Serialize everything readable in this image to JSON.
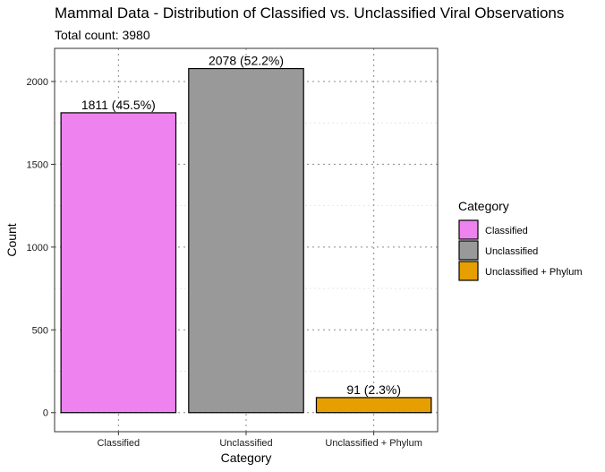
{
  "chart_data": {
    "type": "bar",
    "title": "Mammal Data - Distribution of Classified vs. Unclassified Viral Observations",
    "subtitle": "Total count: 3980",
    "xlabel": "Category",
    "ylabel": "Count",
    "categories": [
      "Classified",
      "Unclassified",
      "Unclassified + Phylum"
    ],
    "values": [
      1811,
      2078,
      91
    ],
    "data_labels": [
      "1811 (45.5%)",
      "2078 (52.2%)",
      "91 (2.3%)"
    ],
    "colors": [
      "#EE82EE",
      "#999999",
      "#E69F00"
    ],
    "ylim": [
      -115,
      2200
    ],
    "yticks": [
      0,
      500,
      1000,
      1500,
      2000
    ],
    "grid": true,
    "legend": {
      "title": "Category",
      "placement": "right",
      "entries": [
        "Classified",
        "Unclassified",
        "Unclassified + Phylum"
      ]
    }
  }
}
